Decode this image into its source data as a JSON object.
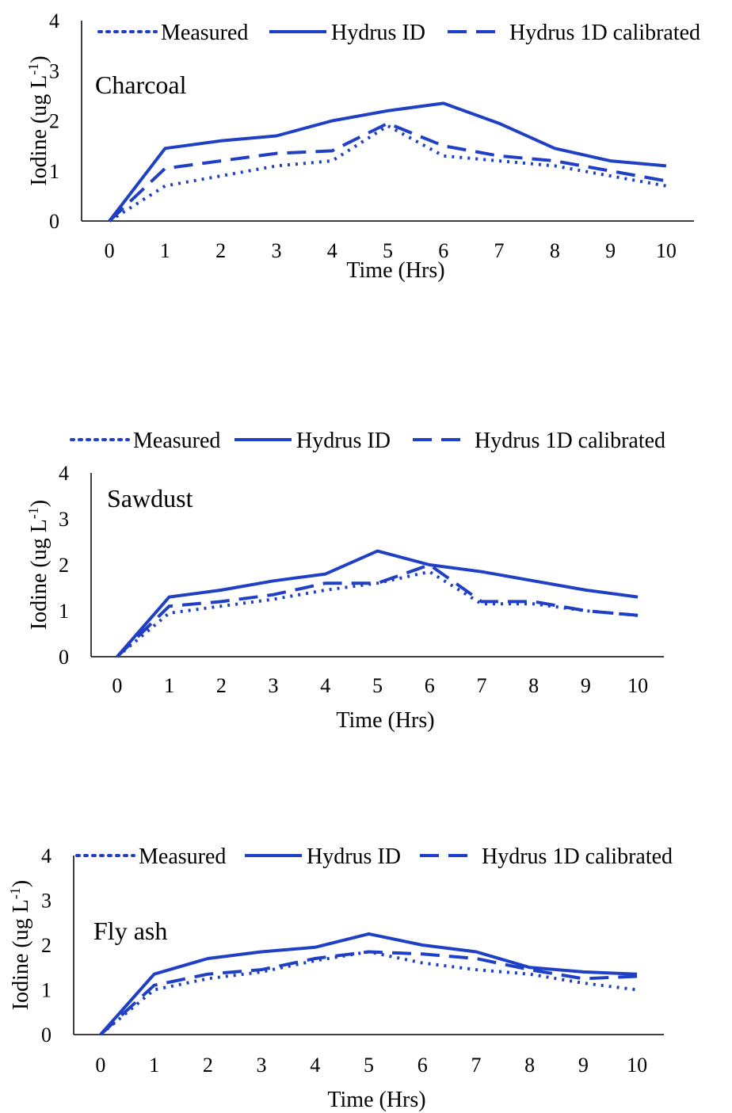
{
  "chart_data": [
    {
      "type": "line",
      "title": "Charcoal",
      "xlabel": "Time (Hrs)",
      "ylabel": "Iodine (ug L-1)",
      "ylabel_main": "Iodine (ug L",
      "ylabel_sup": "-1",
      "ylabel_end": ")",
      "x": [
        0,
        1,
        2,
        3,
        4,
        5,
        6,
        7,
        8,
        9,
        10
      ],
      "xlim": [
        0,
        10
      ],
      "ylim": [
        0,
        4
      ],
      "yticks": [
        0,
        1,
        2,
        3,
        4
      ],
      "grid": false,
      "legend_position": "top",
      "series": [
        {
          "name": "Measured",
          "style": "dotted",
          "values": [
            0,
            0.7,
            0.9,
            1.1,
            1.2,
            1.9,
            1.3,
            1.2,
            1.1,
            0.9,
            0.7
          ]
        },
        {
          "name": "Hydrus ID",
          "style": "solid",
          "values": [
            0,
            1.45,
            1.6,
            1.7,
            2.0,
            2.2,
            2.35,
            1.95,
            1.45,
            1.2,
            1.1
          ]
        },
        {
          "name": "Hydrus 1D calibrated",
          "style": "dashed",
          "values": [
            0,
            1.05,
            1.2,
            1.35,
            1.4,
            1.95,
            1.5,
            1.3,
            1.2,
            1.0,
            0.8
          ]
        }
      ]
    },
    {
      "type": "line",
      "title": "Sawdust",
      "xlabel": "Time (Hrs)",
      "ylabel": "Iodine (ug L-1)",
      "ylabel_main": "Iodine (ug L",
      "ylabel_sup": "-1",
      "ylabel_end": ")",
      "x": [
        0,
        1,
        2,
        3,
        4,
        5,
        6,
        7,
        8,
        9,
        10
      ],
      "xlim": [
        0,
        10
      ],
      "ylim": [
        0,
        4
      ],
      "yticks": [
        0,
        1,
        2,
        3,
        4
      ],
      "grid": false,
      "legend_position": "top",
      "series": [
        {
          "name": "Measured",
          "style": "dotted",
          "values": [
            0,
            0.95,
            1.1,
            1.25,
            1.45,
            1.6,
            1.85,
            1.15,
            1.15,
            1.0,
            0.9
          ]
        },
        {
          "name": "Hydrus ID",
          "style": "solid",
          "values": [
            0,
            1.3,
            1.45,
            1.65,
            1.8,
            2.3,
            2.0,
            1.85,
            1.65,
            1.45,
            1.3
          ]
        },
        {
          "name": "Hydrus 1D calibrated",
          "style": "dashed",
          "values": [
            0,
            1.1,
            1.2,
            1.35,
            1.6,
            1.6,
            2.0,
            1.2,
            1.2,
            1.0,
            0.9
          ]
        }
      ]
    },
    {
      "type": "line",
      "title": "Fly ash",
      "xlabel": "Time (Hrs)",
      "ylabel": "Iodine (ug L-1)",
      "ylabel_main": "Iodine (ug L",
      "ylabel_sup": "-1",
      "ylabel_end": ")",
      "x": [
        0,
        1,
        2,
        3,
        4,
        5,
        6,
        7,
        8,
        9,
        10
      ],
      "xlim": [
        0,
        10
      ],
      "ylim": [
        0,
        4
      ],
      "yticks": [
        0,
        1,
        2,
        3,
        4
      ],
      "grid": false,
      "legend_position": "top",
      "series": [
        {
          "name": "Measured",
          "style": "dotted",
          "values": [
            0,
            1.0,
            1.25,
            1.4,
            1.65,
            1.85,
            1.6,
            1.45,
            1.35,
            1.15,
            1.0
          ]
        },
        {
          "name": "Hydrus ID",
          "style": "solid",
          "values": [
            0,
            1.35,
            1.7,
            1.85,
            1.95,
            2.25,
            2.0,
            1.85,
            1.5,
            1.4,
            1.35
          ]
        },
        {
          "name": "Hydrus 1D calibrated",
          "style": "dashed",
          "values": [
            0,
            1.1,
            1.35,
            1.45,
            1.7,
            1.85,
            1.8,
            1.7,
            1.45,
            1.25,
            1.3
          ]
        }
      ]
    }
  ],
  "colors": {
    "series": "#1f3fc4",
    "axis": "#000000",
    "text": "#000000",
    "background": "#ffffff"
  }
}
